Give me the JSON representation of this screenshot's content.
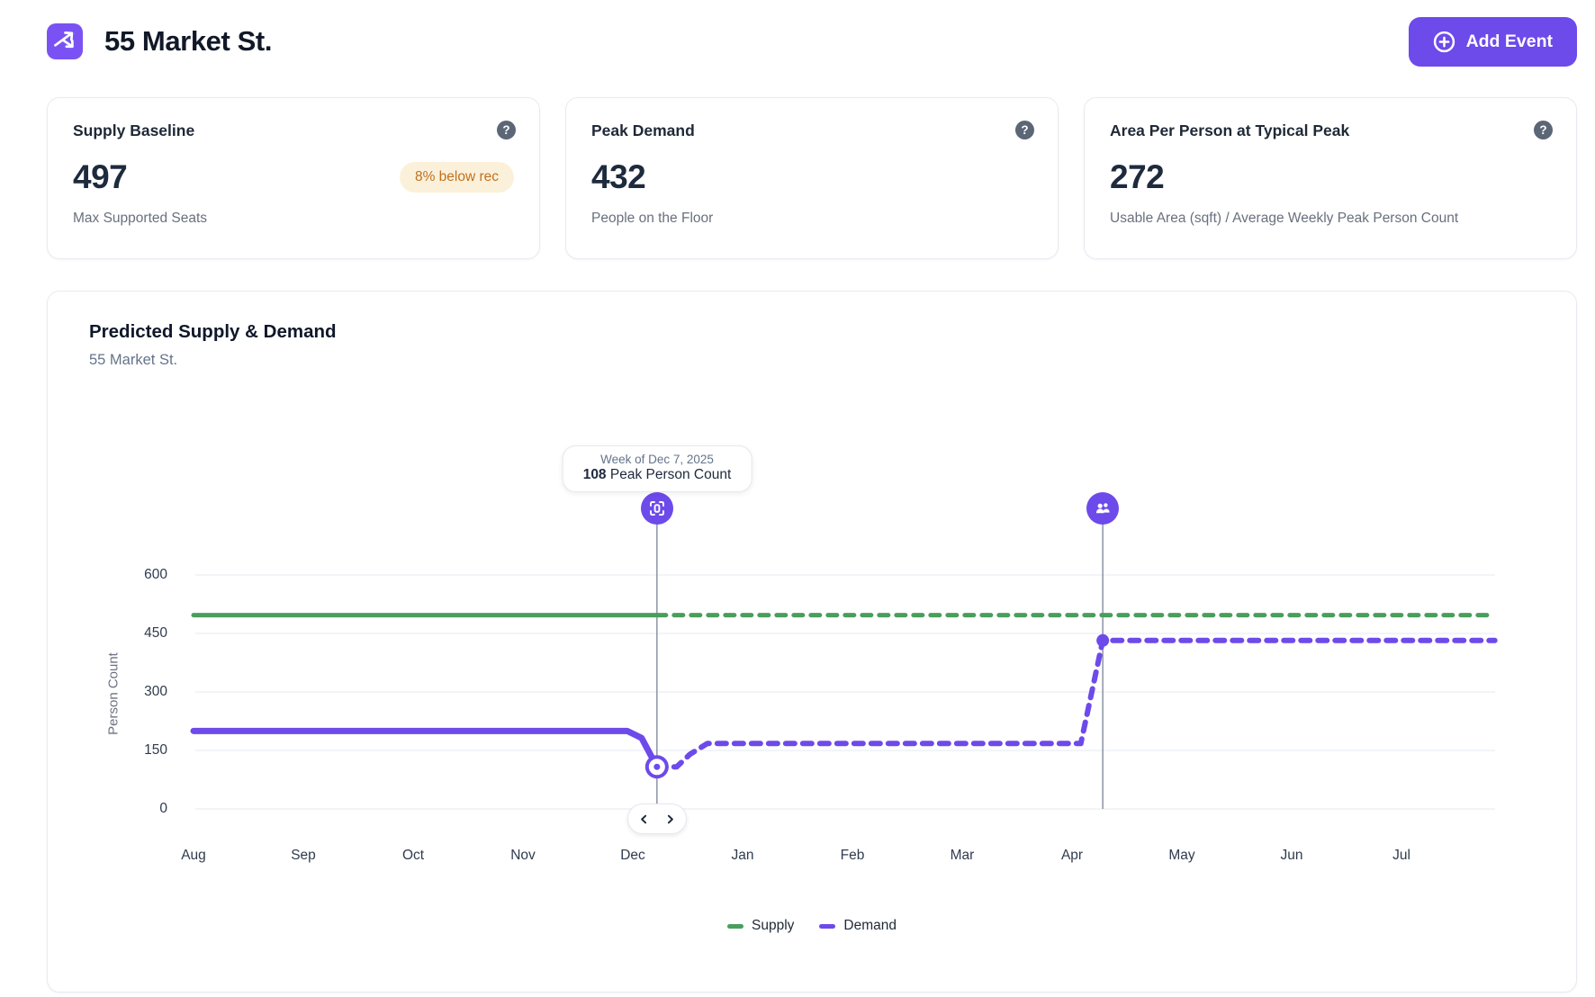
{
  "header": {
    "title": "55 Market St.",
    "add_event_label": "Add Event",
    "logo_icon": "split-arrows-icon",
    "accent_color": "#6d4aea"
  },
  "stat_cards": [
    {
      "title": "Supply Baseline",
      "value": "497",
      "badge": "8% below rec",
      "caption": "Max Supported Seats",
      "help_icon": "question-circle-icon",
      "badge_bg": "#fbf1da",
      "badge_color": "#c0701f"
    },
    {
      "title": "Peak Demand",
      "value": "432",
      "caption": "People on the Floor",
      "help_icon": "question-circle-icon"
    },
    {
      "title": "Area Per Person at Typical Peak",
      "value": "272",
      "caption": "Usable Area (sqft) / Average Weekly Peak Person Count",
      "help_icon": "question-circle-icon"
    }
  ],
  "chart_data": {
    "type": "line",
    "title": "Predicted Supply & Demand",
    "subtitle": "55 Market St.",
    "ylabel": "Person Count",
    "x_ticks": [
      "Aug",
      "Sep",
      "Oct",
      "Nov",
      "Dec",
      "Jan",
      "Feb",
      "Mar",
      "Apr",
      "May",
      "Jun",
      "Jul"
    ],
    "y_ticks": [
      0,
      150,
      300,
      450,
      600
    ],
    "ylim": [
      0,
      650
    ],
    "grid": "horizontal",
    "legend": [
      "Supply",
      "Demand"
    ],
    "legend_position": "bottom-center",
    "series": [
      {
        "name": "Supply",
        "color": "#4a9e5c",
        "segments": [
          {
            "style": "solid",
            "width": 5,
            "points": [
              [
                0,
                497
              ],
              [
                4.22,
                497
              ]
            ]
          },
          {
            "style": "dashed",
            "width": 5,
            "points": [
              [
                4.22,
                497
              ],
              [
                11.85,
                497
              ]
            ]
          }
        ]
      },
      {
        "name": "Demand",
        "color": "#6d4aea",
        "segments": [
          {
            "style": "solid",
            "width": 7,
            "points": [
              [
                0,
                200
              ],
              [
                3.95,
                200
              ],
              [
                4.08,
                182
              ],
              [
                4.22,
                108
              ]
            ]
          },
          {
            "style": "dashed",
            "width": 6,
            "points": [
              [
                4.22,
                108
              ],
              [
                4.4,
                108
              ],
              [
                4.52,
                140
              ],
              [
                4.68,
                168
              ],
              [
                8.08,
                168
              ],
              [
                8.28,
                432
              ],
              [
                11.85,
                432
              ]
            ]
          }
        ]
      }
    ],
    "point_markers": [
      {
        "x": 4.22,
        "y": 108,
        "style": "open",
        "color": "#6d4aea"
      },
      {
        "x": 8.28,
        "y": 432,
        "style": "filled",
        "color": "#6d4aea"
      }
    ],
    "events": [
      {
        "x": 4.22,
        "icon": "scan-person-icon"
      },
      {
        "x": 8.28,
        "icon": "people-icon"
      }
    ],
    "tooltip": {
      "date": "Week of Dec 7, 2025",
      "value": "108",
      "label": "Peak Person Count"
    }
  }
}
